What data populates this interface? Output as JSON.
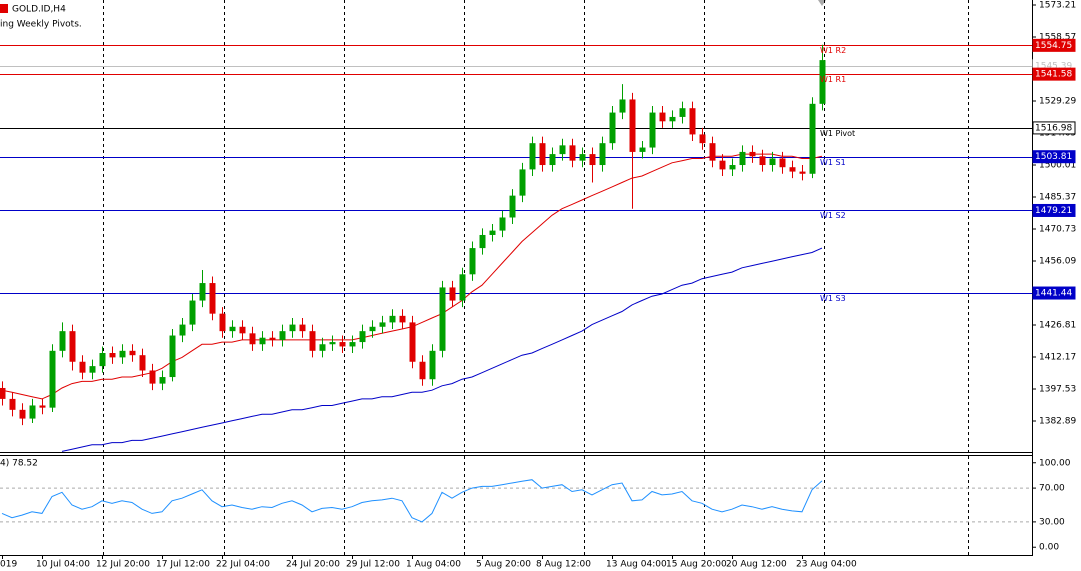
{
  "chart_data": {
    "type": "candlestick",
    "title": "GOLD.ID,H4",
    "subtitle": "ing Weekly Pivots.",
    "categories": [
      "019",
      null,
      null,
      null,
      "10 Jul 04:00",
      null,
      null,
      null,
      null,
      null,
      "12 Jul 20:00",
      null,
      null,
      null,
      null,
      null,
      "17 Jul 12:00",
      null,
      null,
      null,
      null,
      null,
      "22 Jul 04:00",
      null,
      null,
      null,
      null,
      null,
      null,
      "24 Jul 20:00",
      null,
      null,
      null,
      null,
      null,
      "29 Jul 12:00",
      null,
      null,
      null,
      null,
      null,
      "1 Aug 04:00",
      null,
      null,
      null,
      null,
      null,
      null,
      "5 Aug 20:00",
      null,
      null,
      null,
      null,
      null,
      "8 Aug 12:00",
      null,
      null,
      null,
      null,
      null,
      null,
      "13 Aug 04:00",
      null,
      null,
      null,
      null,
      null,
      "15 Aug 20:00",
      null,
      null,
      null,
      null,
      null,
      "20 Aug 12:00",
      null,
      null,
      null,
      null,
      null,
      null,
      "23 Aug 04:00",
      null,
      null
    ],
    "open": [
      1398,
      1393,
      1388,
      1384,
      1390,
      1389,
      1415,
      1424,
      1410,
      1405,
      1408,
      1414,
      1412,
      1415,
      1413,
      1406,
      1400,
      1403,
      1422,
      1427,
      1438,
      1446,
      1432,
      1424,
      1426,
      1423,
      1418,
      1421,
      1420,
      1424,
      1427,
      1424,
      1415,
      1418,
      1419,
      1417,
      1419,
      1424,
      1426,
      1428,
      1431,
      1428,
      1410,
      1402,
      1415,
      1444,
      1438,
      1450,
      1462,
      1468,
      1470,
      1476,
      1486,
      1498,
      1510,
      1500,
      1505,
      1509,
      1502,
      1505,
      1500,
      1510,
      1524,
      1530,
      1506,
      1508,
      1524,
      1520,
      1522,
      1526,
      1514,
      1510,
      1502,
      1498,
      1500,
      1506,
      1504,
      1500,
      1503,
      1499,
      1497,
      1496,
      1528
    ],
    "high": [
      1401,
      1396,
      1391,
      1393,
      1393,
      1418,
      1428,
      1427,
      1413,
      1411,
      1417,
      1417,
      1418,
      1418,
      1416,
      1409,
      1406,
      1425,
      1430,
      1441,
      1452,
      1449,
      1435,
      1429,
      1429,
      1426,
      1424,
      1424,
      1427,
      1430,
      1430,
      1427,
      1421,
      1422,
      1422,
      1422,
      1427,
      1429,
      1431,
      1434,
      1434,
      1431,
      1413,
      1418,
      1447,
      1447,
      1453,
      1465,
      1471,
      1473,
      1479,
      1489,
      1501,
      1513,
      1513,
      1508,
      1512,
      1512,
      1508,
      1508,
      1513,
      1527,
      1537,
      1533,
      1511,
      1527,
      1527,
      1525,
      1529,
      1529,
      1517,
      1513,
      1505,
      1503,
      1509,
      1509,
      1507,
      1506,
      1506,
      1502,
      1500,
      1531,
      1555
    ],
    "low": [
      1390,
      1385,
      1381,
      1382,
      1386,
      1387,
      1412,
      1406,
      1402,
      1402,
      1405,
      1409,
      1409,
      1410,
      1403,
      1397,
      1397,
      1401,
      1419,
      1424,
      1435,
      1429,
      1421,
      1421,
      1420,
      1415,
      1415,
      1417,
      1417,
      1421,
      1421,
      1412,
      1412,
      1415,
      1414,
      1414,
      1416,
      1421,
      1423,
      1425,
      1425,
      1407,
      1399,
      1399,
      1412,
      1435,
      1435,
      1447,
      1459,
      1465,
      1467,
      1473,
      1483,
      1495,
      1497,
      1497,
      1502,
      1499,
      1499,
      1492,
      1497,
      1507,
      1521,
      1480,
      1503,
      1505,
      1517,
      1517,
      1519,
      1511,
      1507,
      1499,
      1495,
      1495,
      1497,
      1501,
      1497,
      1497,
      1496,
      1494,
      1493,
      1494,
      1525
    ],
    "close": [
      1393,
      1388,
      1384,
      1390,
      1389,
      1415,
      1424,
      1410,
      1405,
      1408,
      1414,
      1412,
      1415,
      1413,
      1406,
      1400,
      1403,
      1422,
      1427,
      1438,
      1446,
      1432,
      1424,
      1426,
      1423,
      1418,
      1421,
      1420,
      1424,
      1427,
      1424,
      1415,
      1418,
      1419,
      1417,
      1419,
      1424,
      1426,
      1428,
      1431,
      1428,
      1410,
      1402,
      1415,
      1444,
      1438,
      1450,
      1462,
      1468,
      1470,
      1476,
      1486,
      1498,
      1510,
      1500,
      1505,
      1509,
      1502,
      1505,
      1500,
      1510,
      1524,
      1530,
      1506,
      1508,
      1524,
      1520,
      1522,
      1526,
      1514,
      1510,
      1502,
      1498,
      1500,
      1506,
      1504,
      1500,
      1503,
      1499,
      1497,
      1496,
      1528,
      1548
    ],
    "up_color": "#00a000",
    "down_color": "#e00000",
    "series": [
      {
        "color": "#e00000",
        "values": [
          1397,
          1396,
          1395,
          1394,
          1393,
          1395,
          1398,
          1400,
          1401,
          1401,
          1402,
          1402,
          1403,
          1403,
          1404,
          1405,
          1407,
          1410,
          1412,
          1415,
          1418,
          1418,
          1419,
          1419,
          1420,
          1420,
          1420,
          1420,
          1420,
          1420,
          1420,
          1420,
          1420,
          1420,
          1420,
          1420,
          1421,
          1422,
          1423,
          1424,
          1425,
          1426,
          1428,
          1430,
          1432,
          1435,
          1438,
          1442,
          1445,
          1450,
          1455,
          1460,
          1465,
          1469,
          1473,
          1477,
          1480,
          1482,
          1484,
          1486,
          1488,
          1490,
          1492,
          1494,
          1495,
          1497,
          1499,
          1501,
          1502,
          1503,
          1503,
          1504,
          1504,
          1504,
          1505,
          1505,
          1505,
          1505,
          1504,
          1504,
          1503,
          1503,
          1504
        ]
      },
      {
        "color": "#0000c8",
        "values": [
          null,
          null,
          null,
          null,
          null,
          null,
          1369,
          1370,
          1371,
          1372,
          1372,
          1373,
          1373,
          1374,
          1374,
          1375,
          1376,
          1377,
          1378,
          1379,
          1380,
          1381,
          1382,
          1383,
          1384,
          1385,
          1386,
          1386,
          1387,
          1388,
          1388,
          1389,
          1390,
          1390,
          1391,
          1392,
          1393,
          1393,
          1394,
          1394,
          1395,
          1396,
          1396,
          1397,
          1399,
          1400,
          1402,
          1403,
          1405,
          1407,
          1409,
          1411,
          1413,
          1414,
          1416,
          1418,
          1420,
          1422,
          1424,
          1427,
          1429,
          1431,
          1433,
          1436,
          1438,
          1440,
          1441,
          1443,
          1445,
          1446,
          1448,
          1449,
          1450,
          1451,
          1453,
          1454,
          1455,
          1456,
          1457,
          1458,
          1459,
          1460,
          1462
        ]
      }
    ],
    "ylim": [
      1368.71,
      1575.5
    ],
    "yticks": [
      1573.21,
      1558.57,
      1543.93,
      1529.29,
      1514.65,
      1500.01,
      1485.37,
      1470.73,
      1456.09,
      1441.45,
      1426.81,
      1412.17,
      1397.53,
      1382.89
    ],
    "pivots": [
      {
        "name": "W1 R2",
        "value": 1554.75,
        "color": "#e00000"
      },
      {
        "name": "W1 R1",
        "value": 1541.58,
        "color": "#e00000"
      },
      {
        "name": "W1 Pivot",
        "value": 1516.98,
        "color": "#000000"
      },
      {
        "name": "W1 S1",
        "value": 1503.81,
        "color": "#0000c8"
      },
      {
        "name": "W1 S2",
        "value": 1479.21,
        "color": "#0000c8"
      },
      {
        "name": "W1 S3",
        "value": 1441.44,
        "color": "#0000c8"
      }
    ],
    "bid": {
      "value": 1545.39,
      "color": "#c0c0c0"
    },
    "indicator": {
      "label": "4) 78.52",
      "color": "#1e90ff",
      "values": [
        40,
        35,
        38,
        42,
        40,
        60,
        65,
        50,
        45,
        48,
        55,
        52,
        55,
        53,
        45,
        40,
        42,
        55,
        58,
        63,
        68,
        55,
        48,
        50,
        47,
        45,
        48,
        47,
        52,
        55,
        50,
        42,
        46,
        47,
        45,
        48,
        53,
        55,
        56,
        58,
        55,
        35,
        30,
        40,
        65,
        58,
        65,
        70,
        72,
        72,
        74,
        76,
        78,
        80,
        70,
        72,
        74,
        66,
        68,
        62,
        68,
        74,
        76,
        55,
        56,
        66,
        62,
        63,
        66,
        55,
        52,
        45,
        42,
        45,
        50,
        48,
        45,
        48,
        45,
        43,
        42,
        68,
        78.52
      ],
      "ylim": [
        -9.2,
        108
      ],
      "yticks": [
        {
          "value": 100,
          "label": "100.00"
        },
        {
          "value": 70,
          "label": "70.00"
        },
        {
          "value": 30,
          "label": "30.00"
        },
        {
          "value": 0,
          "label": "0.00"
        }
      ],
      "levels": [
        70,
        30
      ]
    }
  }
}
